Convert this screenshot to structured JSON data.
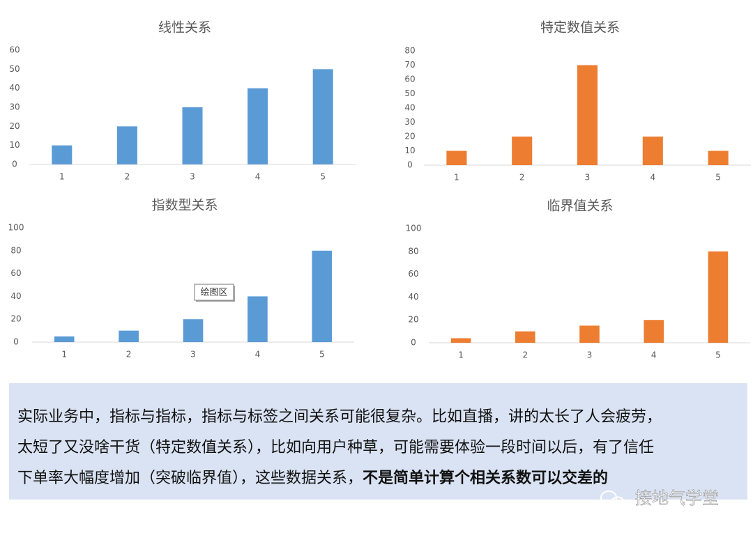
{
  "chart_data": [
    {
      "type": "bar",
      "title": "线性关系",
      "categories": [
        "1",
        "2",
        "3",
        "4",
        "5"
      ],
      "values": [
        10,
        20,
        30,
        40,
        50
      ],
      "color": "#5b9bd5",
      "ylim": [
        0,
        60
      ],
      "yticks": [
        0,
        10,
        20,
        30,
        40,
        50,
        60
      ],
      "grid": false
    },
    {
      "type": "bar",
      "title": "特定数值关系",
      "categories": [
        "1",
        "2",
        "3",
        "4",
        "5"
      ],
      "values": [
        10,
        20,
        70,
        20,
        10
      ],
      "color": "#ed7d31",
      "ylim": [
        0,
        80
      ],
      "yticks": [
        0,
        10,
        20,
        30,
        40,
        50,
        60,
        70,
        80
      ],
      "grid": false
    },
    {
      "type": "bar",
      "title": "指数型关系",
      "categories": [
        "1",
        "2",
        "3",
        "4",
        "5"
      ],
      "values": [
        5,
        10,
        20,
        40,
        80
      ],
      "color": "#5b9bd5",
      "ylim": [
        0,
        100
      ],
      "yticks": [
        0,
        20,
        40,
        60,
        80,
        100
      ],
      "grid": false
    },
    {
      "type": "bar",
      "title": "临界值关系",
      "categories": [
        "1",
        "2",
        "3",
        "4",
        "5"
      ],
      "values": [
        4,
        10,
        15,
        20,
        80
      ],
      "color": "#ed7d31",
      "ylim": [
        0,
        100
      ],
      "yticks": [
        0,
        20,
        40,
        60,
        80,
        100
      ],
      "grid": false
    }
  ],
  "tooltip": "绘图区",
  "note": {
    "lines": [
      "实际业务中，指标与指标，指标与标签之间关系可能很复杂。比如直播，讲的太长了人会疲劳，",
      "太短了又没啥干货（特定数值关系），比如向用户种草，可能需要体验一段时间以后，有了信任",
      "下单率大幅度增加（突破临界值），这些数据关系，"
    ],
    "bold": "不是简单计算个相关系数可以交差的"
  },
  "watermark": "接地气学堂"
}
